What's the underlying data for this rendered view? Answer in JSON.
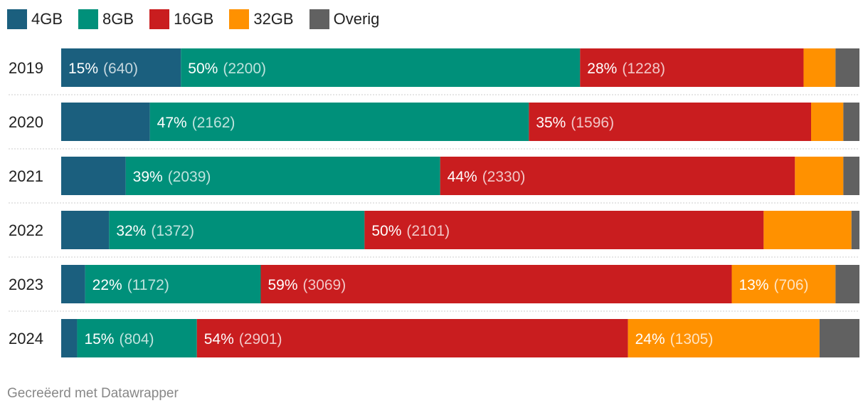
{
  "chart_data": {
    "type": "bar",
    "orientation": "horizontal",
    "stacked": true,
    "title": "",
    "xlabel": "",
    "ylabel": "",
    "xlim": [
      0,
      100
    ],
    "grid": false,
    "legend_position": "top-left",
    "categories": [
      "2019",
      "2020",
      "2021",
      "2022",
      "2023",
      "2024"
    ],
    "series": [
      {
        "name": "4GB",
        "color": "#1b5f7e",
        "values": [
          15,
          11,
          8,
          6,
          3,
          2
        ],
        "labels": [
          "15%",
          "",
          "",
          "",
          "",
          ""
        ],
        "counts": [
          "(640)",
          "",
          "",
          "",
          "",
          ""
        ]
      },
      {
        "name": "8GB",
        "color": "#00907a",
        "values": [
          50,
          47,
          39,
          32,
          22,
          15
        ],
        "labels": [
          "50%",
          "47%",
          "39%",
          "32%",
          "22%",
          "15%"
        ],
        "counts": [
          "(2200)",
          "(2162)",
          "(2039)",
          "(1372)",
          "(1172)",
          "(804)"
        ]
      },
      {
        "name": "16GB",
        "color": "#c91d1f",
        "values": [
          28,
          35,
          44,
          50,
          59,
          54
        ],
        "labels": [
          "28%",
          "35%",
          "44%",
          "50%",
          "59%",
          "54%"
        ],
        "counts": [
          "(1228)",
          "(1596)",
          "(2330)",
          "(2101)",
          "(3069)",
          "(2901)"
        ]
      },
      {
        "name": "32GB",
        "color": "#ff9100",
        "values": [
          4,
          4,
          6,
          11,
          13,
          24
        ],
        "labels": [
          "",
          "",
          "",
          "",
          "13%",
          "24%"
        ],
        "counts": [
          "",
          "",
          "",
          "",
          "(706)",
          "(1305)"
        ]
      },
      {
        "name": "Overig",
        "color": "#616161",
        "values": [
          3,
          2,
          2,
          1,
          3,
          5
        ],
        "labels": [
          "",
          "",
          "",
          "",
          "",
          ""
        ],
        "counts": [
          "",
          "",
          "",
          "",
          "",
          ""
        ]
      }
    ]
  },
  "footer": {
    "credit": "Gecreëerd met Datawrapper"
  }
}
